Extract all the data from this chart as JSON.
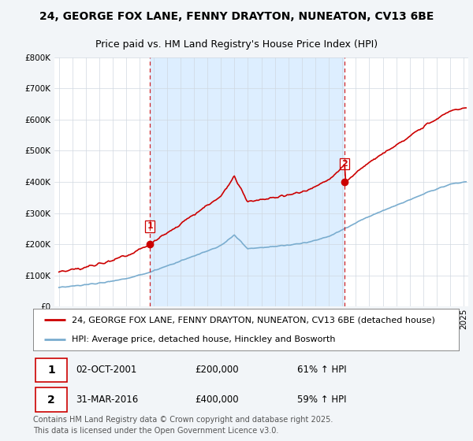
{
  "title": "24, GEORGE FOX LANE, FENNY DRAYTON, NUNEATON, CV13 6BE",
  "subtitle": "Price paid vs. HM Land Registry's House Price Index (HPI)",
  "ylim": [
    0,
    800000
  ],
  "yticks": [
    0,
    100000,
    200000,
    300000,
    400000,
    500000,
    600000,
    700000,
    800000
  ],
  "line1_color": "#cc0000",
  "line2_color": "#7aadcf",
  "vline_color": "#cc0000",
  "shade_color": "#ddeeff",
  "m1": 81,
  "m2": 254,
  "price_m1": 200000,
  "price_m2": 400000,
  "legend_line1": "24, GEORGE FOX LANE, FENNY DRAYTON, NUNEATON, CV13 6BE (detached house)",
  "legend_line2": "HPI: Average price, detached house, Hinckley and Bosworth",
  "annotation1_text": "02-OCT-2001",
  "annotation1_price": "£200,000",
  "annotation1_hpi": "61% ↑ HPI",
  "annotation2_text": "31-MAR-2016",
  "annotation2_price": "£400,000",
  "annotation2_hpi": "59% ↑ HPI",
  "copyright_text": "Contains HM Land Registry data © Crown copyright and database right 2025.\nThis data is licensed under the Open Government Licence v3.0.",
  "background_color": "#f2f5f8",
  "plot_bg_color": "#ffffff",
  "title_fontsize": 10,
  "subtitle_fontsize": 9,
  "tick_fontsize": 7.5,
  "legend_fontsize": 8,
  "annotation_fontsize": 8.5,
  "copyright_fontsize": 7
}
